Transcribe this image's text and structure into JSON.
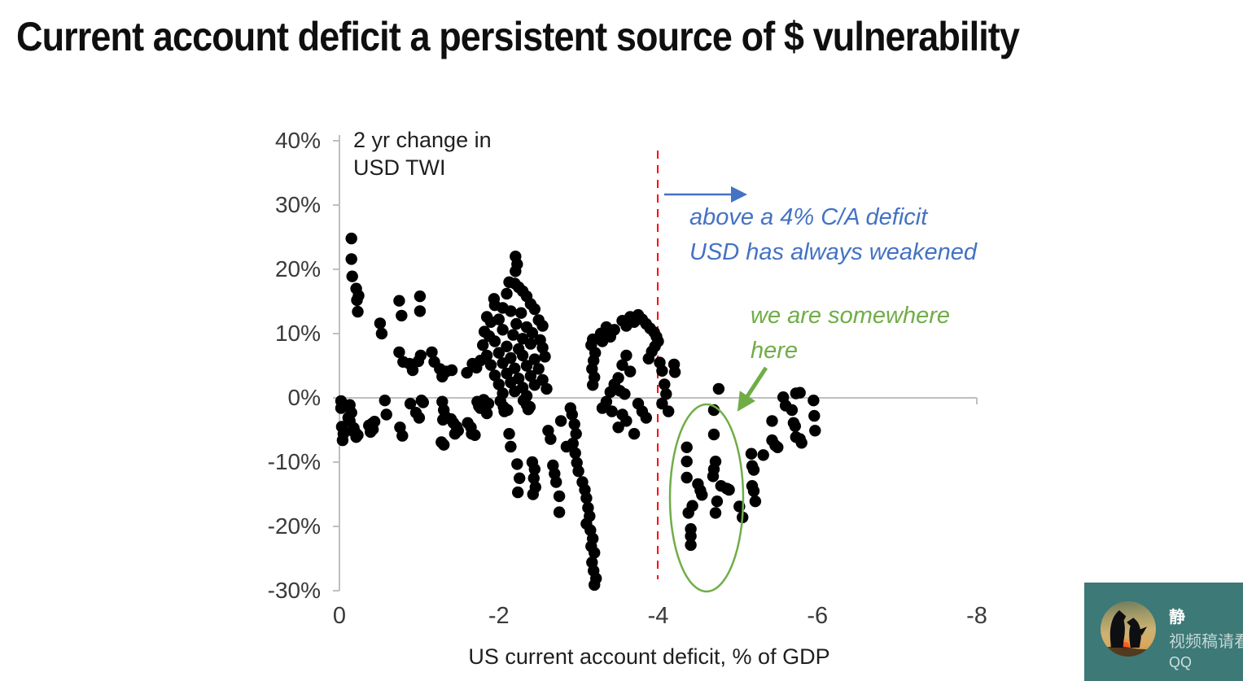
{
  "title": "Current account deficit a persistent source of $ vulnerability",
  "annotations": {
    "axis_note_line1": "2 yr change in",
    "axis_note_line2": "USD TWI",
    "blue_line1": "above a 4% C/A deficit",
    "blue_line2": "USD has always weakened",
    "green_line1": "we are somewhere",
    "green_line2": "here"
  },
  "overlay": {
    "name": "静",
    "subtitle": "视频稿请看",
    "app": "QQ",
    "background": "#3C7977"
  },
  "chart_data": {
    "type": "scatter",
    "xlabel": "US current account deficit, % of GDP",
    "y_axis_note": "2 yr change in USD TWI",
    "x_ticks": [
      "0",
      "-2",
      "-4",
      "-6",
      "-8"
    ],
    "x_tick_values": [
      0,
      -2,
      -4,
      -6,
      -8
    ],
    "y_ticks": [
      "40%",
      "30%",
      "20%",
      "10%",
      "0%",
      "-10%",
      "-20%",
      "-30%"
    ],
    "y_tick_values": [
      40,
      30,
      20,
      10,
      0,
      -10,
      -20,
      -30
    ],
    "xlim": [
      0,
      -8
    ],
    "ylim": [
      40,
      -30
    ],
    "grid": false,
    "point_color": "#000000",
    "reference_line": {
      "x": -4,
      "color": "#FF0000",
      "style": "dashed"
    },
    "highlight_ellipse": {
      "center_x": -4.61,
      "center_y": -15.5,
      "color": "#70AD47"
    },
    "annotations": [
      {
        "text": "above a 4% C/A deficit USD has always weakened",
        "color": "#4472C4",
        "arrow": "right from reference line"
      },
      {
        "text": "we are somewhere here",
        "color": "#70AD47",
        "arrow": "points to highlighted cluster near -4.6% C/A"
      }
    ],
    "points": [
      [
        -0.02,
        -0.5
      ],
      [
        -0.02,
        -1.6
      ],
      [
        -0.05,
        -5.6
      ],
      [
        -0.04,
        -6.6
      ],
      [
        -0.13,
        -1.1
      ],
      [
        -0.15,
        -2.3
      ],
      [
        -0.11,
        -3.1
      ],
      [
        -0.13,
        -3.6
      ],
      [
        -0.03,
        -4.5
      ],
      [
        -0.16,
        -5.1
      ],
      [
        -0.2,
        -5.4
      ],
      [
        -0.23,
        -5.8
      ],
      [
        -0.21,
        -6.1
      ],
      [
        -0.18,
        -4.7
      ],
      [
        -0.15,
        24.8
      ],
      [
        -0.15,
        21.6
      ],
      [
        -0.16,
        18.9
      ],
      [
        -0.21,
        17.0
      ],
      [
        -0.24,
        15.9
      ],
      [
        -0.22,
        15.2
      ],
      [
        -0.23,
        13.4
      ],
      [
        -0.37,
        -4.3
      ],
      [
        -0.41,
        -4.0
      ],
      [
        -0.44,
        -3.7
      ],
      [
        -0.42,
        -4.9
      ],
      [
        -0.39,
        -5.3
      ],
      [
        -0.51,
        11.6
      ],
      [
        -0.53,
        10.0
      ],
      [
        -0.57,
        -0.4
      ],
      [
        -0.59,
        -2.6
      ],
      [
        -0.75,
        15.1
      ],
      [
        -0.78,
        12.8
      ],
      [
        -0.75,
        7.1
      ],
      [
        -0.8,
        5.6
      ],
      [
        -0.76,
        -4.6
      ],
      [
        -0.79,
        -5.9
      ],
      [
        -0.88,
        5.3
      ],
      [
        -0.92,
        4.3
      ],
      [
        -0.89,
        -0.9
      ],
      [
        -0.96,
        -2.3
      ],
      [
        -1.01,
        15.8
      ],
      [
        -1.01,
        13.5
      ],
      [
        -1.02,
        6.6
      ],
      [
        -0.99,
        5.7
      ],
      [
        -1.0,
        -3.1
      ],
      [
        -1.03,
        -0.4
      ],
      [
        -1.05,
        -0.7
      ],
      [
        -1.16,
        7.1
      ],
      [
        -1.19,
        5.6
      ],
      [
        -1.26,
        4.5
      ],
      [
        -1.29,
        3.3
      ],
      [
        -1.34,
        4.1
      ],
      [
        -1.41,
        4.3
      ],
      [
        -1.29,
        -0.6
      ],
      [
        -1.31,
        -1.9
      ],
      [
        -1.33,
        -2.9
      ],
      [
        -1.3,
        -3.4
      ],
      [
        -1.28,
        -6.9
      ],
      [
        -1.31,
        -7.3
      ],
      [
        -1.4,
        -3.3
      ],
      [
        -1.43,
        -3.9
      ],
      [
        -1.47,
        -4.5
      ],
      [
        -1.49,
        -5.1
      ],
      [
        -1.45,
        -5.6
      ],
      [
        -1.6,
        3.9
      ],
      [
        -1.67,
        5.3
      ],
      [
        -1.72,
        4.7
      ],
      [
        -1.77,
        5.8
      ],
      [
        -1.61,
        -3.9
      ],
      [
        -1.65,
        -4.6
      ],
      [
        -1.66,
        -5.6
      ],
      [
        -1.7,
        -5.8
      ],
      [
        -1.73,
        -0.6
      ],
      [
        -1.75,
        -1.3
      ],
      [
        -1.77,
        -1.6
      ],
      [
        -1.81,
        -0.3
      ],
      [
        -1.83,
        -1.1
      ],
      [
        -1.85,
        -2.4
      ],
      [
        -1.87,
        -0.9
      ],
      [
        -2.21,
        22.0
      ],
      [
        -2.23,
        20.8
      ],
      [
        -2.21,
        19.7
      ],
      [
        -2.13,
        18.0
      ],
      [
        -2.2,
        17.8
      ],
      [
        -2.25,
        17.2
      ],
      [
        -2.3,
        16.6
      ],
      [
        -2.1,
        16.2
      ],
      [
        -1.94,
        15.4
      ],
      [
        -2.35,
        15.8
      ],
      [
        -2.4,
        14.6
      ],
      [
        -1.95,
        14.4
      ],
      [
        -2.05,
        14.0
      ],
      [
        -2.15,
        13.5
      ],
      [
        -2.28,
        13.2
      ],
      [
        -2.45,
        13.8
      ],
      [
        -1.85,
        12.6
      ],
      [
        -2.0,
        12.2
      ],
      [
        -2.5,
        12.1
      ],
      [
        -1.9,
        11.8
      ],
      [
        -2.22,
        11.5
      ],
      [
        -2.35,
        11.0
      ],
      [
        -2.55,
        11.2
      ],
      [
        -1.82,
        10.3
      ],
      [
        -2.05,
        10.6
      ],
      [
        -2.42,
        10.1
      ],
      [
        -1.88,
        9.6
      ],
      [
        -2.18,
        9.8
      ],
      [
        -2.3,
        9.2
      ],
      [
        -2.52,
        9.0
      ],
      [
        -1.95,
        8.8
      ],
      [
        -2.4,
        8.4
      ],
      [
        -1.8,
        8.2
      ],
      [
        -2.1,
        8.0
      ],
      [
        -2.55,
        7.8
      ],
      [
        -2.25,
        7.6
      ],
      [
        -2.0,
        7.0
      ],
      [
        -2.3,
        6.6
      ],
      [
        -1.85,
        6.6
      ],
      [
        -2.58,
        6.4
      ],
      [
        -2.15,
        6.2
      ],
      [
        -2.45,
        6.0
      ],
      [
        -1.9,
        5.1
      ],
      [
        -2.35,
        5.0
      ],
      [
        -2.05,
        5.4
      ],
      [
        -2.5,
        4.5
      ],
      [
        -2.2,
        4.6
      ],
      [
        -1.95,
        3.5
      ],
      [
        -2.1,
        3.8
      ],
      [
        -2.4,
        3.4
      ],
      [
        -2.25,
        3.0
      ],
      [
        -2.55,
        2.8
      ],
      [
        -2.0,
        2.1
      ],
      [
        -2.15,
        2.4
      ],
      [
        -2.45,
        2.0
      ],
      [
        -2.3,
        1.6
      ],
      [
        -2.6,
        1.4
      ],
      [
        -2.05,
        0.7
      ],
      [
        -2.2,
        1.0
      ],
      [
        -2.35,
        0.3
      ],
      [
        -2.02,
        -0.5
      ],
      [
        -2.06,
        -1.4
      ],
      [
        -2.07,
        -2.1
      ],
      [
        -2.11,
        -1.9
      ],
      [
        -2.13,
        -5.6
      ],
      [
        -2.15,
        -7.6
      ],
      [
        -2.31,
        -0.4
      ],
      [
        -2.35,
        -1.1
      ],
      [
        -2.37,
        -1.8
      ],
      [
        -2.39,
        -1.4
      ],
      [
        -2.23,
        -10.3
      ],
      [
        -2.26,
        -12.5
      ],
      [
        -2.24,
        -14.7
      ],
      [
        -2.42,
        -10.0
      ],
      [
        -2.45,
        -11.1
      ],
      [
        -2.44,
        -12.5
      ],
      [
        -2.46,
        -13.9
      ],
      [
        -2.43,
        -15.0
      ],
      [
        -2.62,
        -5.1
      ],
      [
        -2.65,
        -6.4
      ],
      [
        -2.68,
        -10.5
      ],
      [
        -2.7,
        -11.8
      ],
      [
        -2.72,
        -13.1
      ],
      [
        -2.76,
        -15.3
      ],
      [
        -2.76,
        -17.8
      ],
      [
        -2.78,
        -3.6
      ],
      [
        -2.85,
        -7.6
      ],
      [
        -2.9,
        -1.6
      ],
      [
        -2.92,
        -2.6
      ],
      [
        -2.95,
        -4.1
      ],
      [
        -2.97,
        -5.6
      ],
      [
        -2.93,
        -7.1
      ],
      [
        -2.96,
        -8.6
      ],
      [
        -2.98,
        -10.1
      ],
      [
        -3.0,
        -11.4
      ],
      [
        -3.05,
        -13.1
      ],
      [
        -3.08,
        -14.3
      ],
      [
        -3.1,
        -15.6
      ],
      [
        -3.12,
        -17.1
      ],
      [
        -3.14,
        -18.4
      ],
      [
        -3.1,
        -19.6
      ],
      [
        -3.15,
        -20.6
      ],
      [
        -3.18,
        -21.9
      ],
      [
        -3.16,
        -23.1
      ],
      [
        -3.2,
        -24.1
      ],
      [
        -3.17,
        -25.6
      ],
      [
        -3.19,
        -26.9
      ],
      [
        -3.22,
        -28.1
      ],
      [
        -3.2,
        -29.1
      ],
      [
        -3.18,
        2.0
      ],
      [
        -3.2,
        3.2
      ],
      [
        -3.17,
        4.5
      ],
      [
        -3.19,
        5.8
      ],
      [
        -3.21,
        7.0
      ],
      [
        -3.16,
        8.2
      ],
      [
        -3.18,
        9.1
      ],
      [
        -3.28,
        10.0
      ],
      [
        -3.3,
        8.8
      ],
      [
        -3.35,
        11.0
      ],
      [
        -3.4,
        9.5
      ],
      [
        -3.45,
        10.6
      ],
      [
        -3.55,
        12.0
      ],
      [
        -3.6,
        11.2
      ],
      [
        -3.65,
        12.6
      ],
      [
        -3.7,
        11.8
      ],
      [
        -3.75,
        12.9
      ],
      [
        -3.8,
        12.2
      ],
      [
        -3.85,
        11.5
      ],
      [
        -3.9,
        10.8
      ],
      [
        -3.95,
        10.2
      ],
      [
        -3.98,
        9.5
      ],
      [
        -4.0,
        8.8
      ],
      [
        -3.96,
        8.0
      ],
      [
        -3.92,
        7.2
      ],
      [
        -3.88,
        6.1
      ],
      [
        -3.6,
        6.6
      ],
      [
        -3.55,
        5.1
      ],
      [
        -3.65,
        4.1
      ],
      [
        -3.5,
        3.1
      ],
      [
        -3.45,
        2.1
      ],
      [
        -3.52,
        1.1
      ],
      [
        -3.58,
        0.6
      ],
      [
        -3.4,
        0.9
      ],
      [
        -3.35,
        -0.6
      ],
      [
        -3.3,
        -1.6
      ],
      [
        -3.42,
        -2.1
      ],
      [
        -3.55,
        -2.6
      ],
      [
        -3.6,
        -3.6
      ],
      [
        -3.5,
        -4.6
      ],
      [
        -3.75,
        -0.9
      ],
      [
        -3.8,
        -2.1
      ],
      [
        -3.85,
        -3.1
      ],
      [
        -3.7,
        -5.6
      ],
      [
        -4.02,
        5.5
      ],
      [
        -4.05,
        4.2
      ],
      [
        -4.08,
        2.1
      ],
      [
        -4.1,
        0.6
      ],
      [
        -4.05,
        -0.9
      ],
      [
        -4.13,
        -2.1
      ],
      [
        -4.2,
        5.2
      ],
      [
        -4.21,
        4.0
      ],
      [
        -4.76,
        1.4
      ],
      [
        -4.7,
        -1.9
      ],
      [
        -4.36,
        -7.7
      ],
      [
        -4.36,
        -9.9
      ],
      [
        -4.36,
        -12.4
      ],
      [
        -4.43,
        -16.8
      ],
      [
        -4.38,
        -17.9
      ],
      [
        -4.41,
        -20.4
      ],
      [
        -4.41,
        -21.5
      ],
      [
        -4.41,
        -22.9
      ],
      [
        -4.5,
        -13.4
      ],
      [
        -4.53,
        -14.4
      ],
      [
        -4.55,
        -15.1
      ],
      [
        -4.7,
        -5.7
      ],
      [
        -4.72,
        -9.9
      ],
      [
        -4.7,
        -11.1
      ],
      [
        -4.69,
        -12.2
      ],
      [
        -4.74,
        -16.1
      ],
      [
        -4.72,
        -17.9
      ],
      [
        -4.79,
        -13.7
      ],
      [
        -4.86,
        -14.1
      ],
      [
        -4.89,
        -14.3
      ],
      [
        -5.02,
        -16.9
      ],
      [
        -5.06,
        -18.6
      ],
      [
        -5.17,
        -8.7
      ],
      [
        -5.18,
        -10.6
      ],
      [
        -5.2,
        -11.2
      ],
      [
        -5.18,
        -13.7
      ],
      [
        -5.2,
        -14.5
      ],
      [
        -5.22,
        -16.1
      ],
      [
        -5.32,
        -8.9
      ],
      [
        -5.43,
        -3.6
      ],
      [
        -5.43,
        -6.6
      ],
      [
        -5.47,
        -7.4
      ],
      [
        -5.5,
        -7.7
      ],
      [
        -5.57,
        0.1
      ],
      [
        -5.6,
        -1.2
      ],
      [
        -5.68,
        -1.9
      ],
      [
        -5.7,
        -3.9
      ],
      [
        -5.72,
        -4.4
      ],
      [
        -5.73,
        -6.1
      ],
      [
        -5.78,
        -6.4
      ],
      [
        -5.8,
        -7.0
      ],
      [
        -5.73,
        0.7
      ],
      [
        -5.78,
        0.8
      ],
      [
        -5.95,
        -0.4
      ],
      [
        -5.96,
        -2.8
      ],
      [
        -5.97,
        -5.1
      ]
    ]
  }
}
